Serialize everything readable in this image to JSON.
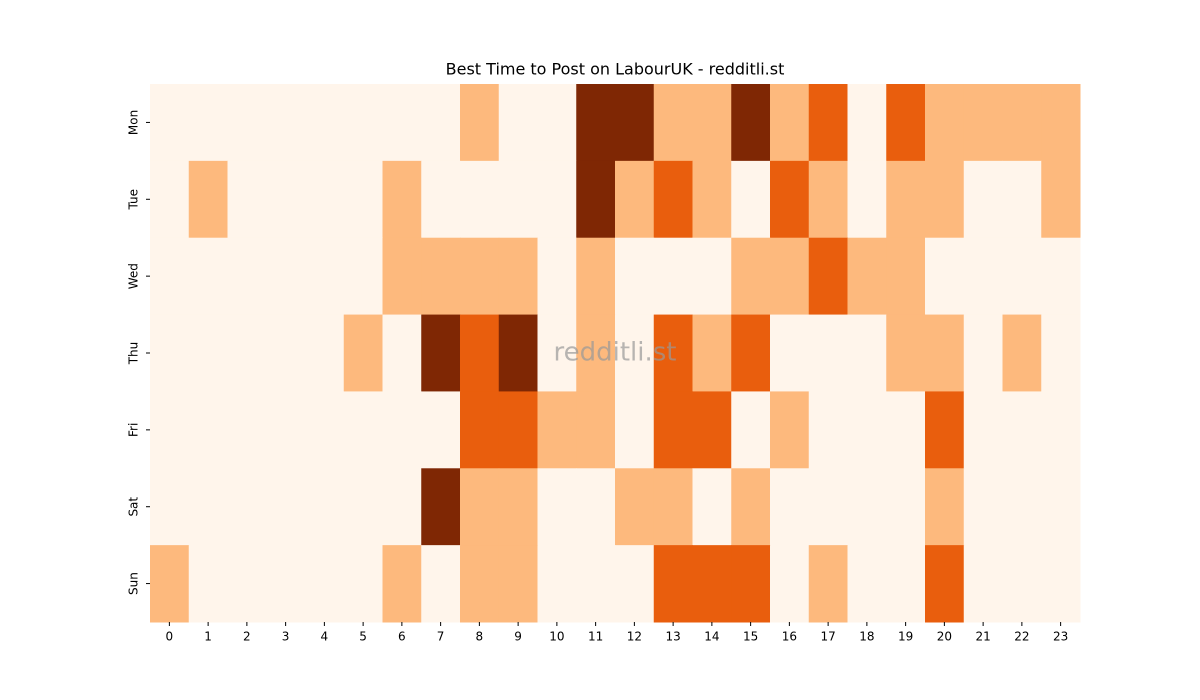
{
  "chart_data": {
    "type": "heatmap",
    "title": "Best Time to Post on LabourUK - redditli.st",
    "annotation": "redditli.st",
    "x": [
      0,
      1,
      2,
      3,
      4,
      5,
      6,
      7,
      8,
      9,
      10,
      11,
      12,
      13,
      14,
      15,
      16,
      17,
      18,
      19,
      20,
      21,
      22,
      23
    ],
    "y": [
      "Mon",
      "Tue",
      "Wed",
      "Thu",
      "Fri",
      "Sat",
      "Sun"
    ],
    "colors": [
      "#fff5eb",
      "#fdb97d",
      "#e95e0d",
      "#7f2704"
    ],
    "values": [
      [
        0,
        0,
        0,
        0,
        0,
        0,
        0,
        0,
        1,
        0,
        0,
        3,
        3,
        1,
        1,
        3,
        1,
        2,
        0,
        2,
        1,
        1,
        1,
        1
      ],
      [
        0,
        1,
        0,
        0,
        0,
        0,
        1,
        0,
        0,
        0,
        0,
        3,
        1,
        2,
        1,
        0,
        2,
        1,
        0,
        1,
        1,
        0,
        0,
        1
      ],
      [
        0,
        0,
        0,
        0,
        0,
        0,
        1,
        1,
        1,
        1,
        0,
        1,
        0,
        0,
        0,
        1,
        1,
        2,
        1,
        1,
        0,
        0,
        0,
        0
      ],
      [
        0,
        0,
        0,
        0,
        0,
        1,
        0,
        3,
        2,
        3,
        0,
        1,
        0,
        2,
        1,
        2,
        0,
        0,
        0,
        1,
        1,
        0,
        1,
        0
      ],
      [
        0,
        0,
        0,
        0,
        0,
        0,
        0,
        0,
        2,
        2,
        1,
        1,
        0,
        2,
        2,
        0,
        1,
        0,
        0,
        0,
        2,
        0,
        0,
        0
      ],
      [
        0,
        0,
        0,
        0,
        0,
        0,
        0,
        3,
        1,
        1,
        0,
        0,
        1,
        1,
        0,
        1,
        0,
        0,
        0,
        0,
        1,
        0,
        0,
        0
      ],
      [
        1,
        0,
        0,
        0,
        0,
        0,
        1,
        0,
        1,
        1,
        0,
        0,
        0,
        2,
        2,
        2,
        0,
        1,
        0,
        0,
        2,
        0,
        0,
        0
      ]
    ]
  }
}
